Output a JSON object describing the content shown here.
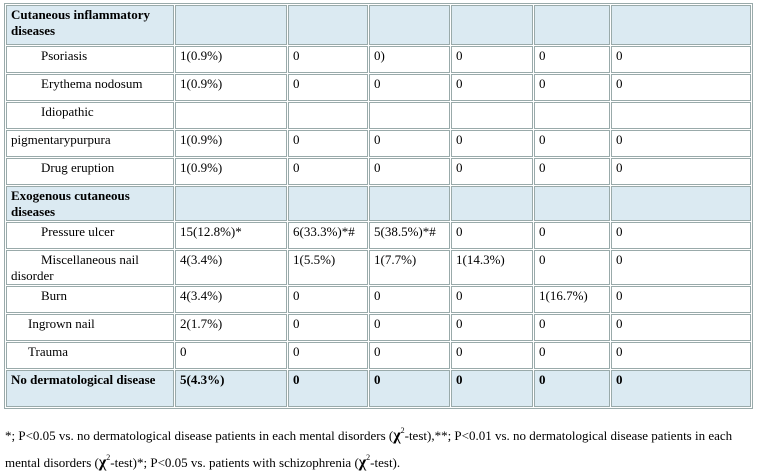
{
  "table": {
    "rows": [
      {
        "label": "Cutaneous inflammatory diseases"
      },
      {
        "label": "Psoriasis",
        "values": [
          "1(0.9%)",
          "0",
          "0)",
          "0",
          "0",
          "0"
        ]
      },
      {
        "label": "Erythema nodosum",
        "values": [
          "1(0.9%)",
          "0",
          "0",
          "0",
          "0",
          "0"
        ]
      },
      {
        "label": "Idiopathic"
      },
      {
        "label": "pigmentarypurpura",
        "values": [
          "1(0.9%)",
          "0",
          "0",
          "0",
          "0",
          "0"
        ]
      },
      {
        "label": "Drug eruption",
        "values": [
          "1(0.9%)",
          "0",
          "0",
          "0",
          "0",
          "0"
        ]
      },
      {
        "label": "Exogenous cutaneous diseases"
      },
      {
        "label": "Pressure ulcer",
        "values": [
          "15(12.8%)*",
          "6(33.3%)*#",
          "5(38.5%)*#",
          "0",
          "0",
          "0"
        ]
      },
      {
        "label": "Miscellaneous nail disorder",
        "values": [
          "4(3.4%)",
          "1(5.5%)",
          "1(7.7%)",
          "1(14.3%)",
          "0",
          "0"
        ]
      },
      {
        "label": "Burn",
        "values": [
          "4(3.4%)",
          "0",
          "0",
          "0",
          "1(16.7%)",
          "0"
        ]
      },
      {
        "label": "Ingrown nail",
        "values": [
          "2(1.7%)",
          "0",
          "0",
          "0",
          "0",
          "0"
        ]
      },
      {
        "label": "Trauma",
        "values": [
          "0",
          "0",
          "0",
          "0",
          "0",
          "0"
        ]
      },
      {
        "label": "No dermatological disease",
        "values": [
          "5(4.3%)",
          "0",
          "0",
          "0",
          "0",
          "0"
        ]
      }
    ]
  },
  "footnote": [
    "*; P<0.05 vs. no dermatological disease patients in each mental disorders (",
    "χ",
    "2",
    "-test),**; P<0.01 vs. no dermatological disease patients in each mental disorders (",
    "χ",
    "2",
    "-test)*; P<0.05 vs. patients with schizophrenia (",
    "χ",
    "2",
    "-test)."
  ]
}
